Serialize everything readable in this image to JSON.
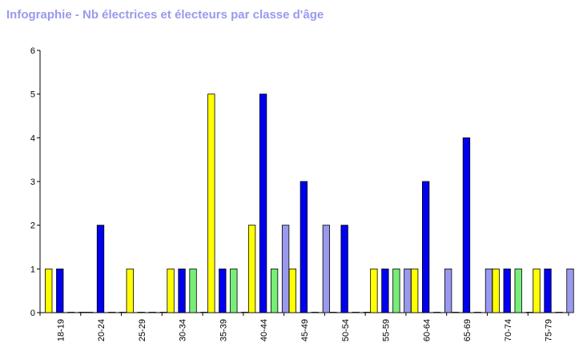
{
  "chart_data": {
    "type": "bar",
    "title": "Infographie - Nb électrices et électeurs par classe d'âge",
    "categories": [
      "18-19",
      "20-24",
      "25-29",
      "30-34",
      "35-39",
      "40-44",
      "45-49",
      "50-54",
      "55-59",
      "60-64",
      "65-69",
      "70-74",
      "75-79"
    ],
    "ylim": [
      0,
      6
    ],
    "yticks": [
      "0",
      "1",
      "2",
      "3",
      "4",
      "5",
      "6"
    ],
    "series": [
      {
        "color": "#ffff00",
        "values": [
          1,
          0,
          1,
          1,
          5,
          2,
          1,
          0,
          1,
          1,
          0,
          1,
          1
        ]
      },
      {
        "color": "#0000ee",
        "values": [
          1,
          2,
          0,
          1,
          1,
          5,
          3,
          2,
          1,
          3,
          4,
          1,
          1
        ]
      },
      {
        "color": "#77ee77",
        "values": [
          0,
          0,
          0,
          1,
          1,
          1,
          0,
          0,
          1,
          0,
          0,
          1,
          0
        ]
      },
      {
        "color": "#9999ee",
        "values": [
          0,
          0,
          0,
          0,
          0,
          2,
          2,
          0,
          1,
          1,
          1,
          0,
          1
        ]
      }
    ],
    "grid": false,
    "legend": "none"
  }
}
